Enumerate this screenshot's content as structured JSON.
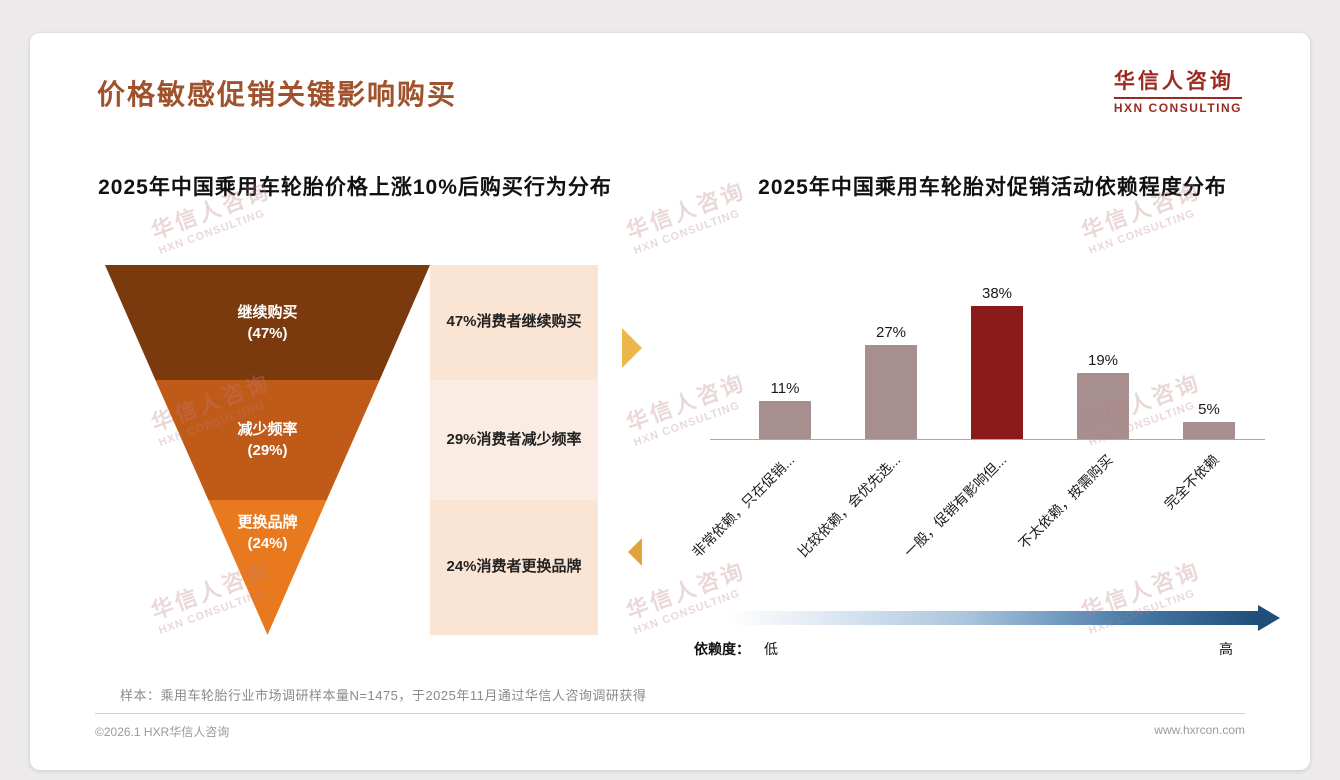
{
  "page": {
    "title": "价格敏感促销关键影响购买",
    "logo_cn": "华信人咨询",
    "logo_en": "HXN CONSULTING",
    "watermark_cn": "华信人咨询",
    "watermark_en": "HXN CONSULTING",
    "sample_note": "样本：乘用车轮胎行业市场调研样本量N=1475，于2025年11月通过华信人咨询调研获得",
    "footer_left": "©2026.1 HXR华信人咨询",
    "footer_right": "www.hxrcon.com"
  },
  "chart_data": [
    {
      "type": "funnel",
      "title": "2025年中国乘用车轮胎价格上涨10%后购买行为分布",
      "segments": [
        {
          "label": "继续购买",
          "value": 47,
          "color": "#7B3A0E",
          "annotation": "47%消费者继续购买",
          "annotation_bg": "#FAE4D4"
        },
        {
          "label": "减少频率",
          "value": 29,
          "color": "#C05A18",
          "annotation": "29%消费者减少频率",
          "annotation_bg": "#FAECE2"
        },
        {
          "label": "更换品牌",
          "value": 24,
          "color": "#E8791E",
          "annotation": "24%消费者更换品牌",
          "annotation_bg": "#FAE4D4"
        }
      ]
    },
    {
      "type": "bar",
      "title": "2025年中国乘用车轮胎对促销活动依赖程度分布",
      "categories": [
        "非常依赖，只在促销...",
        "比较依赖，会优先选...",
        "一般，促销有影响但...",
        "不太依赖，按需购买",
        "完全不依赖"
      ],
      "values": [
        11,
        27,
        38,
        19,
        5
      ],
      "highlight_index": 2,
      "bar_color": "#A78F90",
      "highlight_color": "#8B1A1A",
      "ylim": [
        0,
        45
      ],
      "legend_position": "none",
      "grid": false,
      "dependence_axis": {
        "label": "依赖度：",
        "low": "低",
        "high": "高"
      }
    }
  ]
}
